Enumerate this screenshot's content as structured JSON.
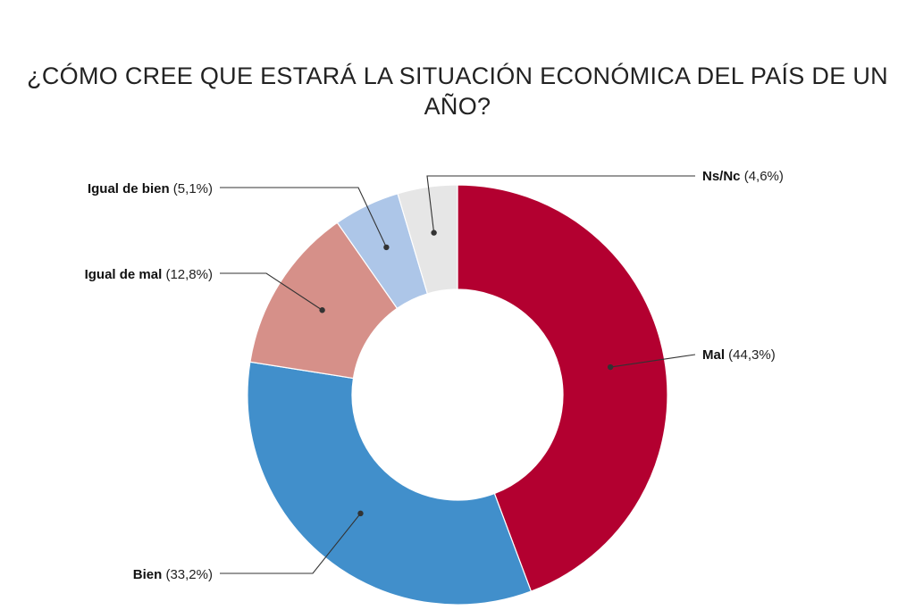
{
  "chart_data": {
    "type": "pie",
    "title": "¿CÓMO CREE QUE ESTARÁ LA SITUACIÓN ECONÓMICA DEL PAÍS DE UN\nAÑO?",
    "slices": [
      {
        "name": "Mal",
        "value": 44.3,
        "value_label": "(44,3%)",
        "color": "#b30030"
      },
      {
        "name": "Bien",
        "value": 33.2,
        "value_label": "(33,2%)",
        "color": "#418fcb"
      },
      {
        "name": "Igual de mal",
        "value": 12.8,
        "value_label": "(12,8%)",
        "color": "#d69089"
      },
      {
        "name": "Igual de bien",
        "value": 5.1,
        "value_label": "(5,1%)",
        "color": "#adc6e8"
      },
      {
        "name": "Ns/Nc",
        "value": 4.6,
        "value_label": "(4,6%)",
        "color": "#e6e6e6"
      }
    ],
    "donut": true,
    "start_angle": "12 o'clock",
    "direction": "clockwise",
    "legend": "callout labels"
  }
}
